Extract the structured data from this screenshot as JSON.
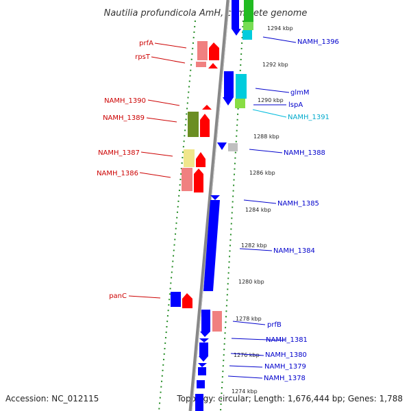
{
  "title": "Nautilia profundicola AmH, complete genome",
  "footer": {
    "accession": "Accession: NC_012115",
    "summary": "Topology: circular; Length: 1,676,444 bp; Genes: 1,788"
  },
  "scale_labels": [
    "1294 kbp",
    "1292 kbp",
    "1290 kbp",
    "1288 kbp",
    "1286 kbp",
    "1284 kbp",
    "1282 kbp",
    "1280 kbp",
    "1278 kbp",
    "1276 kbp",
    "1274 kbp"
  ],
  "left_labels": [
    "prfA",
    "rpsT",
    "NAMH_1390",
    "NAMH_1389",
    "NAMH_1387",
    "NAMH_1386",
    "panC"
  ],
  "right_labels": [
    "NAMH_1396",
    "glmM",
    "lspA",
    "NAMH_1391",
    "NAMH_1388",
    "NAMH_1385",
    "NAMH_1384",
    "prfB",
    "NAMH_1381",
    "NAMH_1380",
    "NAMH_1379",
    "NAMH_1378"
  ],
  "colors": {
    "forward_strand": "#ff0000",
    "reverse_strand": "#0000ff",
    "pink_feature": "#f08080",
    "olive_feature": "#6b8e23",
    "yellow_feature": "#f0e68c",
    "green_feature": "#22bb22",
    "cyan_feature": "#00ccdd",
    "gray_feature": "#c0c0c0",
    "backbone": "#8a8a8a",
    "gc_dots": "#228b22"
  }
}
